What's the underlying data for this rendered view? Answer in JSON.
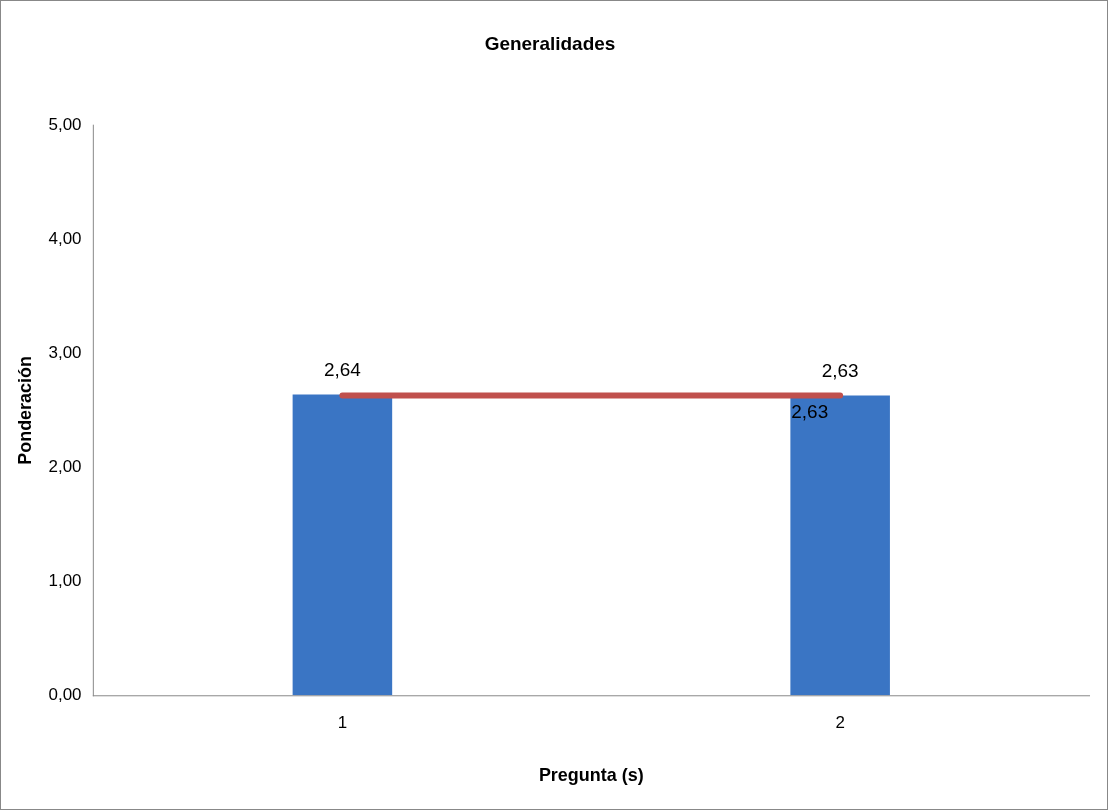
{
  "chart_data": {
    "type": "bar",
    "title": "Generalidades",
    "xlabel": "Pregunta (s)",
    "ylabel": "Ponderación",
    "categories": [
      "1",
      "2"
    ],
    "series": [
      {
        "color": "#3a75c4",
        "values": [
          2.64,
          2.63
        ],
        "value_labels": [
          "2,64",
          "2,63"
        ]
      },
      {
        "type": "line",
        "color": "#c0504d",
        "values": [
          2.63,
          2.63
        ],
        "value_labels": [
          null,
          "2,63"
        ]
      }
    ],
    "marker": "none",
    "ylim": [
      0,
      5
    ],
    "yticks": [
      {
        "value": 0,
        "label": "0,00"
      },
      {
        "value": 1,
        "label": "1,00"
      },
      {
        "value": 2,
        "label": "2,00"
      },
      {
        "value": 3,
        "label": "3,00"
      },
      {
        "value": 4,
        "label": "4,00"
      },
      {
        "value": 5,
        "label": "5,00"
      }
    ]
  }
}
